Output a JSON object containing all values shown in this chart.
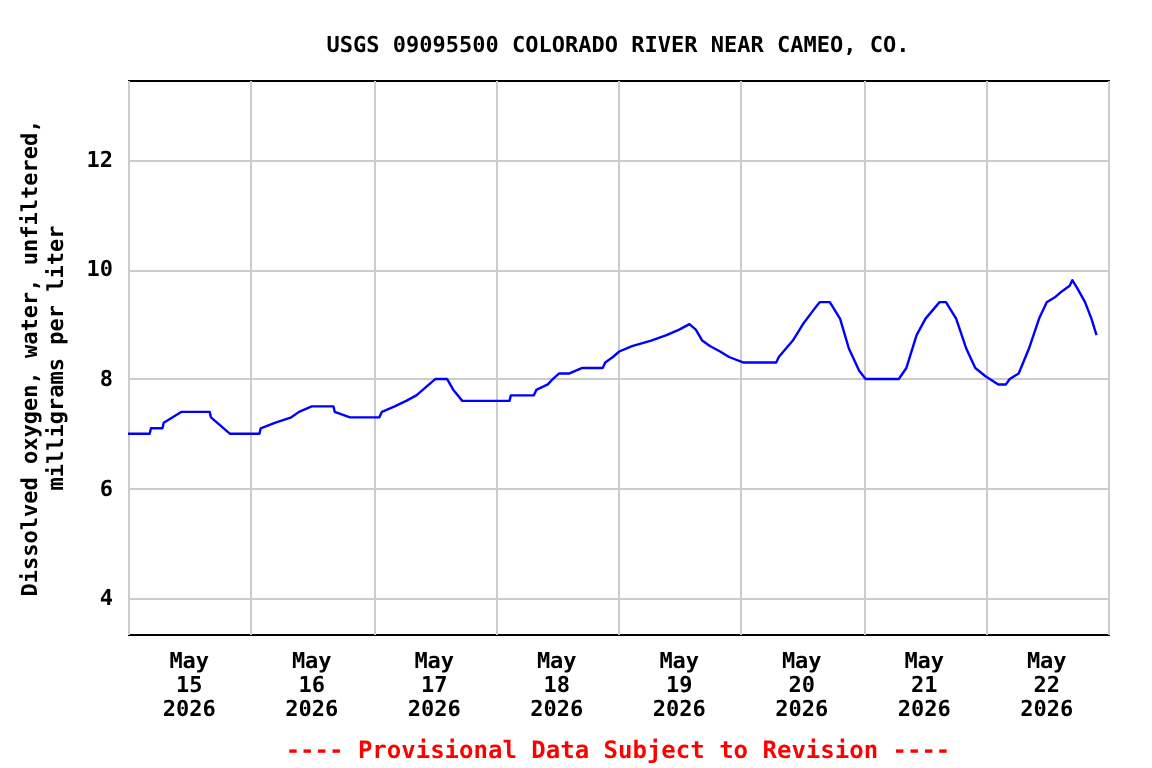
{
  "chart_data": {
    "type": "line",
    "title": "USGS 09095500 COLORADO RIVER NEAR CAMEO, CO.",
    "ylabel": "Dissolved oxygen, water, unfiltered,\nmilligrams per liter",
    "annotations": [
      "---- Provisional Data Subject to Revision ----"
    ],
    "xlim": [
      "2026-05-15T00:00",
      "2026-05-23T00:00"
    ],
    "xticks": [
      {
        "value": "2026-05-15T00:00",
        "label": null
      },
      {
        "value": "2026-05-15T12:00",
        "label": "May\n15\n2026"
      },
      {
        "value": "2026-05-16T00:00",
        "label": null
      },
      {
        "value": "2026-05-16T12:00",
        "label": "May\n16\n2026"
      },
      {
        "value": "2026-05-17T00:00",
        "label": null
      },
      {
        "value": "2026-05-17T12:00",
        "label": "May\n17\n2026"
      },
      {
        "value": "2026-05-18T00:00",
        "label": null
      },
      {
        "value": "2026-05-18T12:00",
        "label": "May\n18\n2026"
      },
      {
        "value": "2026-05-19T00:00",
        "label": null
      },
      {
        "value": "2026-05-19T12:00",
        "label": "May\n19\n2026"
      },
      {
        "value": "2026-05-20T00:00",
        "label": null
      },
      {
        "value": "2026-05-20T12:00",
        "label": "May\n20\n2026"
      },
      {
        "value": "2026-05-21T00:00",
        "label": null
      },
      {
        "value": "2026-05-21T12:00",
        "label": "May\n21\n2026"
      },
      {
        "value": "2026-05-22T00:00",
        "label": null
      },
      {
        "value": "2026-05-22T12:00",
        "label": "May\n22\n2026"
      },
      {
        "value": "2026-05-23T00:00",
        "label": null
      }
    ],
    "ylim": [
      3.35,
      13.45
    ],
    "yticks": [
      4,
      6,
      8,
      10,
      12
    ],
    "grid": true,
    "marker": "none",
    "line_style": "solid",
    "x": [
      "2026-05-15T00:00",
      "2026-05-15T04:15",
      "2026-05-15T04:30",
      "2026-05-15T06:45",
      "2026-05-15T07:00",
      "2026-05-15T08:45",
      "2026-05-15T10:30",
      "2026-05-15T16:00",
      "2026-05-15T16:15",
      "2026-05-15T17:30",
      "2026-05-15T18:45",
      "2026-05-15T20:00",
      "2026-05-16T01:45",
      "2026-05-16T02:00",
      "2026-05-16T04:45",
      "2026-05-16T08:00",
      "2026-05-16T09:30",
      "2026-05-16T12:00",
      "2026-05-16T16:15",
      "2026-05-16T16:30",
      "2026-05-16T19:30",
      "2026-05-17T01:15",
      "2026-05-17T01:45",
      "2026-05-17T04:15",
      "2026-05-17T06:30",
      "2026-05-17T08:30",
      "2026-05-17T09:45",
      "2026-05-17T11:00",
      "2026-05-17T12:15",
      "2026-05-17T14:30",
      "2026-05-17T15:45",
      "2026-05-17T17:30",
      "2026-05-18T02:45",
      "2026-05-18T03:00",
      "2026-05-18T07:30",
      "2026-05-18T08:00",
      "2026-05-18T10:15",
      "2026-05-18T11:15",
      "2026-05-18T12:30",
      "2026-05-18T14:30",
      "2026-05-18T17:00",
      "2026-05-18T21:00",
      "2026-05-18T21:30",
      "2026-05-18T23:00",
      "2026-05-19T00:15",
      "2026-05-19T02:45",
      "2026-05-19T06:30",
      "2026-05-19T09:30",
      "2026-05-19T12:00",
      "2026-05-19T14:00",
      "2026-05-19T15:15",
      "2026-05-19T16:30",
      "2026-05-19T18:00",
      "2026-05-19T20:00",
      "2026-05-19T21:45",
      "2026-05-20T00:30",
      "2026-05-20T07:00",
      "2026-05-20T07:30",
      "2026-05-20T10:15",
      "2026-05-20T12:15",
      "2026-05-20T14:15",
      "2026-05-20T15:30",
      "2026-05-20T17:30",
      "2026-05-20T19:30",
      "2026-05-20T21:15",
      "2026-05-20T23:15",
      "2026-05-21T00:30",
      "2026-05-21T07:00",
      "2026-05-21T08:30",
      "2026-05-21T10:30",
      "2026-05-21T12:15",
      "2026-05-21T15:00",
      "2026-05-21T16:15",
      "2026-05-21T18:15",
      "2026-05-21T20:15",
      "2026-05-21T22:00",
      "2026-05-22T00:00",
      "2026-05-22T02:30",
      "2026-05-22T04:00",
      "2026-05-22T04:45",
      "2026-05-22T06:30",
      "2026-05-22T08:30",
      "2026-05-22T10:30",
      "2026-05-22T12:00",
      "2026-05-22T13:45",
      "2026-05-22T15:00",
      "2026-05-22T16:30",
      "2026-05-22T17:00",
      "2026-05-22T18:00",
      "2026-05-22T19:30",
      "2026-05-22T20:45",
      "2026-05-22T21:45"
    ],
    "series": [
      {
        "color": "#0000ff",
        "values": [
          7.0,
          7.0,
          7.1,
          7.1,
          7.2,
          7.3,
          7.4,
          7.4,
          7.3,
          7.2,
          7.1,
          7.0,
          7.0,
          7.1,
          7.2,
          7.3,
          7.4,
          7.5,
          7.5,
          7.4,
          7.3,
          7.3,
          7.4,
          7.5,
          7.6,
          7.7,
          7.8,
          7.9,
          8.0,
          8.0,
          7.8,
          7.6,
          7.6,
          7.7,
          7.7,
          7.8,
          7.9,
          8.0,
          8.1,
          8.1,
          8.2,
          8.2,
          8.3,
          8.4,
          8.5,
          8.6,
          8.7,
          8.8,
          8.9,
          9.0,
          8.9,
          8.7,
          8.6,
          8.5,
          8.4,
          8.3,
          8.3,
          8.4,
          8.7,
          9.0,
          9.25,
          9.4,
          9.4,
          9.1,
          8.55,
          8.15,
          8.0,
          8.0,
          8.2,
          8.8,
          9.1,
          9.4,
          9.4,
          9.1,
          8.55,
          8.2,
          8.05,
          7.9,
          7.9,
          8.0,
          8.1,
          8.55,
          9.1,
          9.4,
          9.5,
          9.6,
          9.7,
          9.8,
          9.65,
          9.4,
          9.1,
          8.8
        ]
      }
    ]
  }
}
